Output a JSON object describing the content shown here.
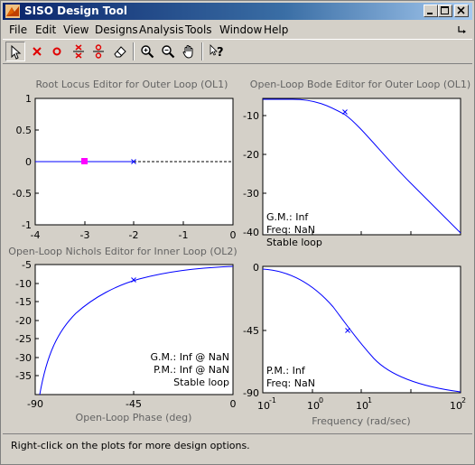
{
  "window": {
    "title": "SISO Design Tool",
    "icon": "matlab-icon",
    "controls": [
      "minimize-icon",
      "maximize-icon",
      "close-icon"
    ]
  },
  "menu": {
    "items": [
      "File",
      "Edit",
      "View",
      "Designs",
      "Analysis",
      "Tools",
      "Window",
      "Help"
    ],
    "right_icon": "hook-arrow-icon"
  },
  "toolbar": {
    "tools": [
      "select-arrow-icon",
      "add-real-pole-icon",
      "add-real-zero-icon",
      "add-complex-pole-icon",
      "add-complex-zero-icon",
      "eraser-icon",
      "zoom-in-icon",
      "zoom-out-icon",
      "pan-hand-icon",
      "whats-this-help-icon"
    ]
  },
  "plots": {
    "root_locus": {
      "title": "Root Locus Editor for Outer Loop (OL1)",
      "x_ticks": [
        "-4",
        "-3",
        "-2",
        "-1",
        "0"
      ],
      "y_ticks": [
        "1",
        "0.5",
        "0",
        "-0.5",
        "-1"
      ]
    },
    "bode": {
      "title": "Open-Loop Bode Editor for Outer Loop (OL1)",
      "y_ticks": [
        "-10",
        "-20",
        "-30",
        "-40"
      ],
      "info": [
        "G.M.: Inf",
        "Freq: NaN",
        "Stable loop"
      ]
    },
    "nichols": {
      "title": "Open-Loop Nichols Editor for Inner Loop (OL2)",
      "y_ticks": [
        "-5",
        "-10",
        "-15",
        "-20",
        "-25",
        "-30",
        "-35"
      ],
      "x_ticks": [
        "-90",
        "-45",
        "0"
      ],
      "xlabel": "Open-Loop Phase (deg)",
      "info": [
        "G.M.: Inf @ NaN",
        "P.M.: Inf @ NaN",
        "Stable loop"
      ]
    },
    "bode_phase": {
      "y_ticks": [
        "0",
        "-45",
        "-90"
      ],
      "x_tick_base": "10",
      "x_tick_exponents": [
        "-1",
        "0",
        "1",
        "2"
      ],
      "xlabel": "Frequency (rad/sec)",
      "info": [
        "P.M.: Inf",
        "Freq: NaN"
      ]
    }
  },
  "status": {
    "text": "Right-click on the plots for more design options."
  },
  "colors": {
    "curve": "#0000ff",
    "marker": "#ff00ff",
    "axis_label": "#636363",
    "title_gradient_start": "#0a246a",
    "title_gradient_end": "#a6caf0"
  }
}
